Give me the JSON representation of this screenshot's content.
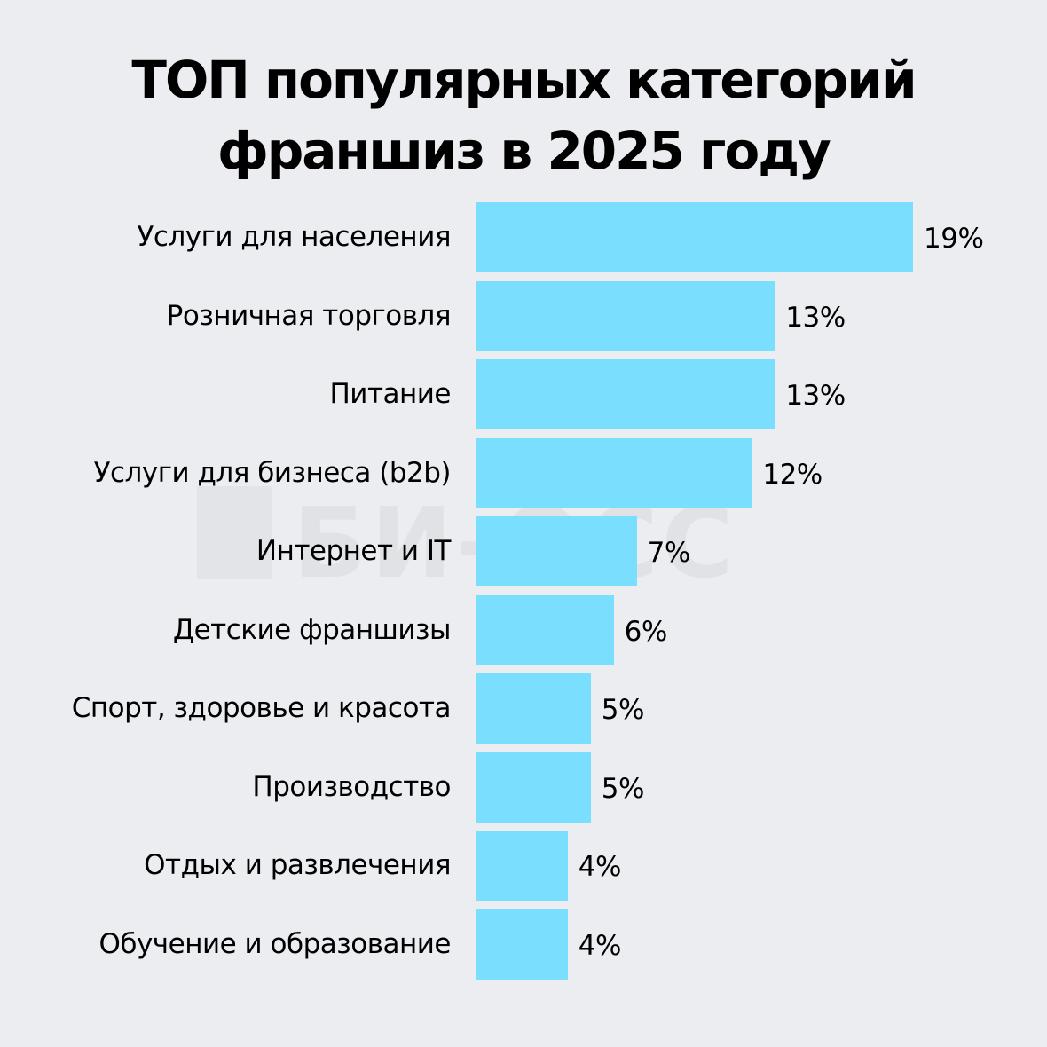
{
  "title_line1": "ТОП популярных категорий",
  "title_line2": "франшиз в 2025 году",
  "watermark": "БИ-ОСС",
  "colors": {
    "bar": "#7adfff",
    "background": "#ecedf1",
    "text": "#000000"
  },
  "chart_data": {
    "type": "bar",
    "orientation": "horizontal",
    "title": "ТОП популярных категорий франшиз в 2025 году",
    "categories": [
      "Услуги для населения",
      "Розничная торговля",
      "Питание",
      "Услуги для бизнеса (b2b)",
      "Интернет и IT",
      "Детские франшизы",
      "Спорт, здоровье и красота",
      "Производство",
      "Отдых и развлечения",
      "Обучение и образование"
    ],
    "values": [
      19,
      13,
      13,
      12,
      7,
      6,
      5,
      5,
      4,
      4
    ],
    "value_labels": [
      "19%",
      "13%",
      "13%",
      "12%",
      "7%",
      "6%",
      "5%",
      "5%",
      "4%",
      "4%"
    ],
    "xlabel": "",
    "ylabel": "",
    "grid": false,
    "legend": null
  }
}
